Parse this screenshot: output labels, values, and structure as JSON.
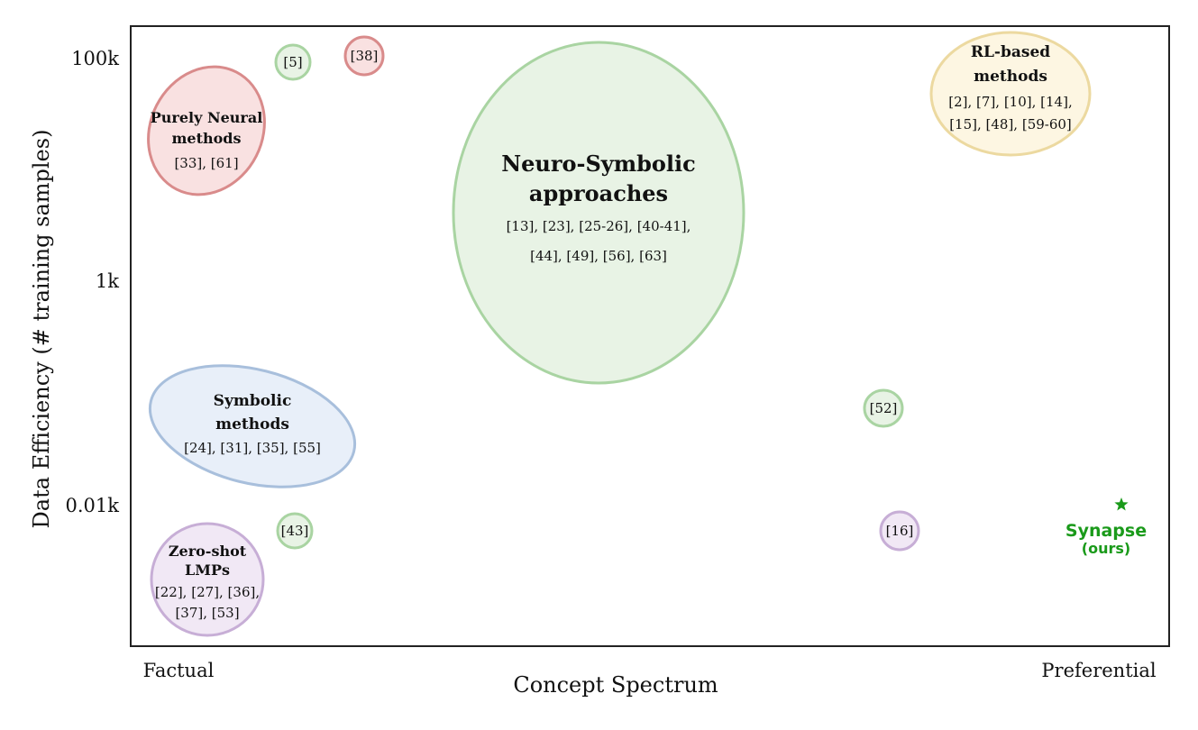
{
  "chart_data": {
    "type": "scatter",
    "xlabel": "Concept Spectrum",
    "ylabel": "Data Efficiency (# training samples)",
    "x_tick_labels": [
      "Factual",
      "Preferential"
    ],
    "y_tick_labels": [
      "100k",
      "1k",
      "0.01k"
    ],
    "y_scale": "log",
    "ylim_label_range": [
      "0.01k",
      "100k"
    ],
    "grid": false,
    "legend": "none",
    "groups": [
      {
        "id": "purely-neural",
        "title_lines": [
          "Purely Neural",
          "methods"
        ],
        "refs_lines": [
          "[33], [61]"
        ],
        "color": "#d98b8b",
        "fill": "#f9e1e1"
      },
      {
        "id": "ref-5",
        "title_lines": [],
        "refs_lines": [
          "[5]"
        ],
        "color": "#a9d4a2",
        "fill": "#e8f3e5"
      },
      {
        "id": "ref-38",
        "title_lines": [],
        "refs_lines": [
          "[38]"
        ],
        "color": "#d98b8b",
        "fill": "#f9e1e1"
      },
      {
        "id": "neuro-symbolic",
        "title_lines": [
          "Neuro-Symbolic",
          "approaches"
        ],
        "refs_lines": [
          "[13], [23], [25-26], [40-41],",
          "[44], [49], [56], [63]"
        ],
        "color": "#a9d4a2",
        "fill": "#e8f3e5"
      },
      {
        "id": "rl-based",
        "title_lines": [
          "RL-based",
          "methods"
        ],
        "refs_lines": [
          "[2], [7], [10], [14],",
          "[15], [48], [59-60]"
        ],
        "color": "#ecd9a0",
        "fill": "#fdf6e2"
      },
      {
        "id": "symbolic",
        "title_lines": [
          "Symbolic",
          "methods"
        ],
        "refs_lines": [
          "[24], [31], [35], [55]"
        ],
        "color": "#a8bfdc",
        "fill": "#e8eff9"
      },
      {
        "id": "ref-52",
        "title_lines": [],
        "refs_lines": [
          "[52]"
        ],
        "color": "#a9d4a2",
        "fill": "#e8f3e5"
      },
      {
        "id": "ref-43",
        "title_lines": [],
        "refs_lines": [
          "[43]"
        ],
        "color": "#a9d4a2",
        "fill": "#e8f3e5"
      },
      {
        "id": "zero-shot",
        "title_lines": [
          "Zero-shot",
          "LMPs"
        ],
        "refs_lines": [
          "[22], [27], [36],",
          "[37], [53]"
        ],
        "color": "#c7aed6",
        "fill": "#f1e8f5"
      },
      {
        "id": "ref-16",
        "title_lines": [],
        "refs_lines": [
          "[16]"
        ],
        "color": "#c7aed6",
        "fill": "#f1e8f5"
      }
    ],
    "ours": {
      "labels": [
        "Synapse",
        "(ours)"
      ],
      "marker": "star",
      "color": "#1a9a1a"
    }
  }
}
